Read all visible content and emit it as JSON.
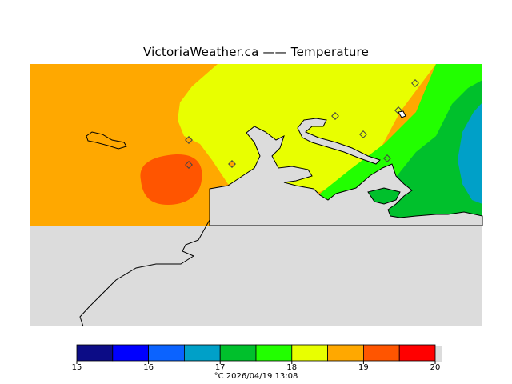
{
  "title": "VictoriaWeather.ca  —— Temperature",
  "colorbar": {
    "ticks": [
      "15",
      "16",
      "17",
      "18",
      "19",
      "20"
    ],
    "colors": [
      "#0c0c86",
      "#0000ff",
      "#0b63ff",
      "#00a0c8",
      "#00c02c",
      "#22ff00",
      "#e8ff00",
      "#ffa800",
      "#ff5500",
      "#ff0000"
    ],
    "unit_date": "°C  2026/04/19 13:08"
  },
  "legend_colors": {
    "land_gray": "#dcdcdc",
    "orange_19": "#ffa800",
    "red_orange_19_5": "#ff5500",
    "yellow_18": "#e8ff00",
    "green_17_5": "#22ff00",
    "green_17": "#00c02c",
    "teal_16_5": "#00a0c8"
  },
  "stations": [
    "station-1",
    "station-2",
    "station-3",
    "station-4",
    "station-5",
    "station-6",
    "station-7",
    "station-8"
  ]
}
